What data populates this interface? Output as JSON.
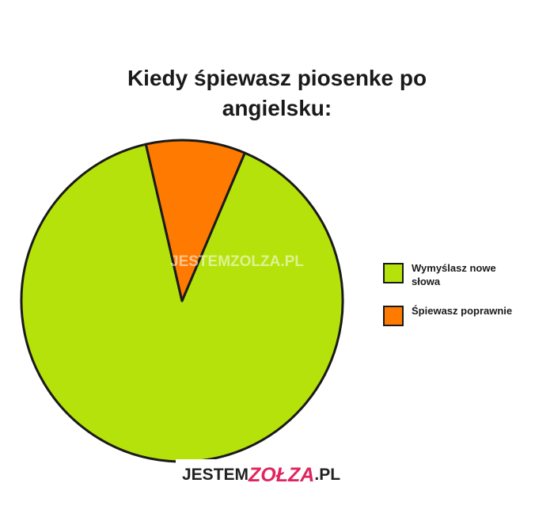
{
  "chart_data": {
    "type": "pie",
    "title": "Kiedy śpiewasz piosenke po angielsku:",
    "slices": [
      {
        "label": "Wymyślasz nowe słowa",
        "value": 90,
        "color": "#b5e20a"
      },
      {
        "label": "Śpiewasz poprawnie",
        "value": 10,
        "color": "#ff7a00"
      }
    ],
    "start_angle_deg": 23,
    "legend": "right"
  },
  "watermark": {
    "center_text": "JESTEMZOLZA.PL",
    "bottom_a": "JESTEM",
    "bottom_b": "ZOŁZA",
    "bottom_c": ".PL"
  }
}
